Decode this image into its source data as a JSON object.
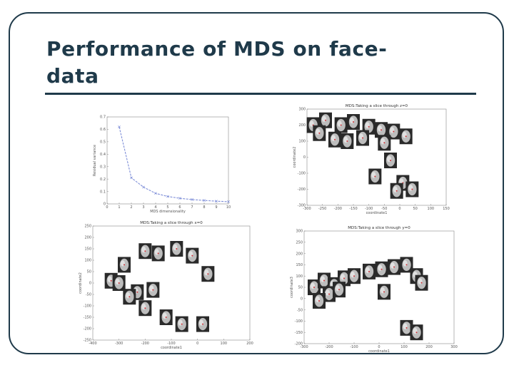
{
  "slide": {
    "title_line1": "Performance of MDS on face-",
    "title_line2": "data"
  },
  "chart_data": [
    {
      "type": "line",
      "title": "",
      "xlabel": "MDS dimensionality",
      "ylabel": "Residual variance",
      "x": [
        1,
        2,
        3,
        4,
        5,
        6,
        7,
        8,
        9,
        10
      ],
      "series": [
        {
          "values": [
            0.62,
            0.21,
            0.135,
            0.085,
            0.06,
            0.045,
            0.035,
            0.028,
            0.022,
            0.018
          ]
        }
      ],
      "xlim": [
        0,
        10
      ],
      "ylim": [
        0,
        0.7
      ],
      "xticks": [
        "0",
        "1",
        "2",
        "3",
        "4",
        "5",
        "6",
        "7",
        "8",
        "9",
        "10"
      ],
      "yticks": [
        "0",
        "0.1",
        "0.2",
        "0.3",
        "0.4",
        "0.5",
        "0.6",
        "0.7"
      ]
    },
    {
      "type": "scatter",
      "title": "MDS:Taking a slice through z=0",
      "xlabel": "coordinate1",
      "ylabel": "coordinate2",
      "xlim": [
        -300,
        150
      ],
      "ylim": [
        -300,
        300
      ],
      "xticks": [
        "-300",
        "-250",
        "-200",
        "-150",
        "-100",
        "-50",
        "0",
        "50",
        "100",
        "150"
      ],
      "yticks": [
        "-300",
        "-200",
        "-100",
        "0",
        "100",
        "200",
        "300"
      ],
      "points": [
        {
          "x": -280,
          "y": 200
        },
        {
          "x": -240,
          "y": 230
        },
        {
          "x": -190,
          "y": 200
        },
        {
          "x": -150,
          "y": 220
        },
        {
          "x": -100,
          "y": 190
        },
        {
          "x": -60,
          "y": 170
        },
        {
          "x": -20,
          "y": 160
        },
        {
          "x": -260,
          "y": 150
        },
        {
          "x": -210,
          "y": 110
        },
        {
          "x": -170,
          "y": 100
        },
        {
          "x": -120,
          "y": 120
        },
        {
          "x": -50,
          "y": 90
        },
        {
          "x": 20,
          "y": 130
        },
        {
          "x": -30,
          "y": -20
        },
        {
          "x": -80,
          "y": -120
        },
        {
          "x": 10,
          "y": -160
        },
        {
          "x": 40,
          "y": -200
        },
        {
          "x": -10,
          "y": -210
        }
      ]
    },
    {
      "type": "scatter",
      "title": "MDS:Taking a slice through x=0",
      "xlabel": "coordinate1",
      "ylabel": "coordinate2",
      "xlim": [
        -400,
        200
      ],
      "ylim": [
        -250,
        250
      ],
      "xticks": [
        "-400",
        "-300",
        "-200",
        "-100",
        "0",
        "100",
        "200"
      ],
      "yticks": [
        "-250",
        "-200",
        "-150",
        "-100",
        "-50",
        "0",
        "50",
        "100",
        "150",
        "200",
        "250"
      ],
      "points": [
        {
          "x": -80,
          "y": 150
        },
        {
          "x": -150,
          "y": 130
        },
        {
          "x": -200,
          "y": 140
        },
        {
          "x": -20,
          "y": 120
        },
        {
          "x": -280,
          "y": 80
        },
        {
          "x": -330,
          "y": 10
        },
        {
          "x": -300,
          "y": 0
        },
        {
          "x": -230,
          "y": -40
        },
        {
          "x": -170,
          "y": -30
        },
        {
          "x": -260,
          "y": -60
        },
        {
          "x": -200,
          "y": -110
        },
        {
          "x": -120,
          "y": -150
        },
        {
          "x": -60,
          "y": -180
        },
        {
          "x": 20,
          "y": -180
        },
        {
          "x": 40,
          "y": 40
        }
      ]
    },
    {
      "type": "scatter",
      "title": "MDS:Taking a slice through y=0",
      "xlabel": "coordinate1",
      "ylabel": "coordinate3",
      "xlim": [
        -300,
        300
      ],
      "ylim": [
        -200,
        300
      ],
      "xticks": [
        "-300",
        "-200",
        "-100",
        "0",
        "100",
        "200",
        "300"
      ],
      "yticks": [
        "-200",
        "-150",
        "-100",
        "-50",
        "0",
        "50",
        "100",
        "150",
        "200",
        "250",
        "300"
      ],
      "points": [
        {
          "x": -260,
          "y": 50
        },
        {
          "x": -220,
          "y": 80
        },
        {
          "x": -180,
          "y": 60
        },
        {
          "x": -140,
          "y": 90
        },
        {
          "x": -100,
          "y": 100
        },
        {
          "x": -40,
          "y": 120
        },
        {
          "x": 10,
          "y": 130
        },
        {
          "x": 60,
          "y": 140
        },
        {
          "x": 110,
          "y": 150
        },
        {
          "x": 150,
          "y": 100
        },
        {
          "x": 170,
          "y": 70
        },
        {
          "x": -200,
          "y": 20
        },
        {
          "x": -240,
          "y": -10
        },
        {
          "x": -160,
          "y": 40
        },
        {
          "x": 20,
          "y": 30
        },
        {
          "x": 110,
          "y": -130
        },
        {
          "x": 150,
          "y": -150
        }
      ]
    }
  ]
}
